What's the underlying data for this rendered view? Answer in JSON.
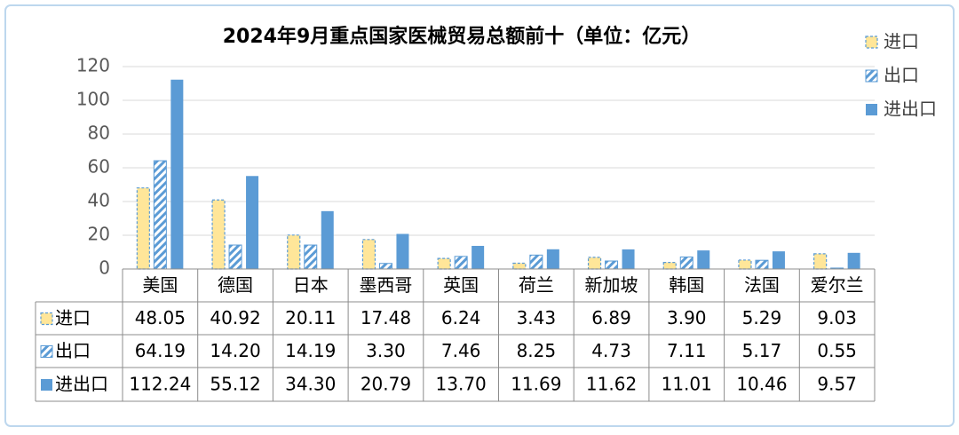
{
  "chart_data": {
    "type": "bar",
    "title": "2024年9月重点国家医械贸易总额前十（单位：亿元）",
    "categories": [
      "美国",
      "德国",
      "日本",
      "墨西哥",
      "英国",
      "荷兰",
      "新加坡",
      "韩国",
      "法国",
      "爱尔兰"
    ],
    "series": [
      {
        "name": "进口",
        "color": "#ffe699",
        "border": "#5b9bd5",
        "values": [
          48.05,
          40.92,
          20.11,
          17.48,
          6.24,
          3.43,
          6.89,
          3.9,
          5.29,
          9.03
        ],
        "value_labels": [
          "48.05",
          "40.92",
          "20.11",
          "17.48",
          "6.24",
          "3.43",
          "6.89",
          "3.90",
          "5.29",
          "9.03"
        ]
      },
      {
        "name": "出口",
        "color": "#5b9bd5",
        "pattern": "hatch",
        "values": [
          64.19,
          14.2,
          14.19,
          3.3,
          7.46,
          8.25,
          4.73,
          7.11,
          5.17,
          0.55
        ],
        "value_labels": [
          "64.19",
          "14.20",
          "14.19",
          "3.30",
          "7.46",
          "8.25",
          "4.73",
          "7.11",
          "5.17",
          "0.55"
        ]
      },
      {
        "name": "进出口",
        "color": "#5b9bd5",
        "values": [
          112.24,
          55.12,
          34.3,
          20.79,
          13.7,
          11.69,
          11.62,
          11.01,
          10.46,
          9.57
        ],
        "value_labels": [
          "112.24",
          "55.12",
          "34.30",
          "20.79",
          "13.70",
          "11.69",
          "11.62",
          "11.01",
          "10.46",
          "9.57"
        ]
      }
    ],
    "ylim": [
      0,
      120
    ],
    "yticks": [
      0,
      20,
      40,
      60,
      80,
      100,
      120
    ],
    "grid": true,
    "legend": "right"
  }
}
